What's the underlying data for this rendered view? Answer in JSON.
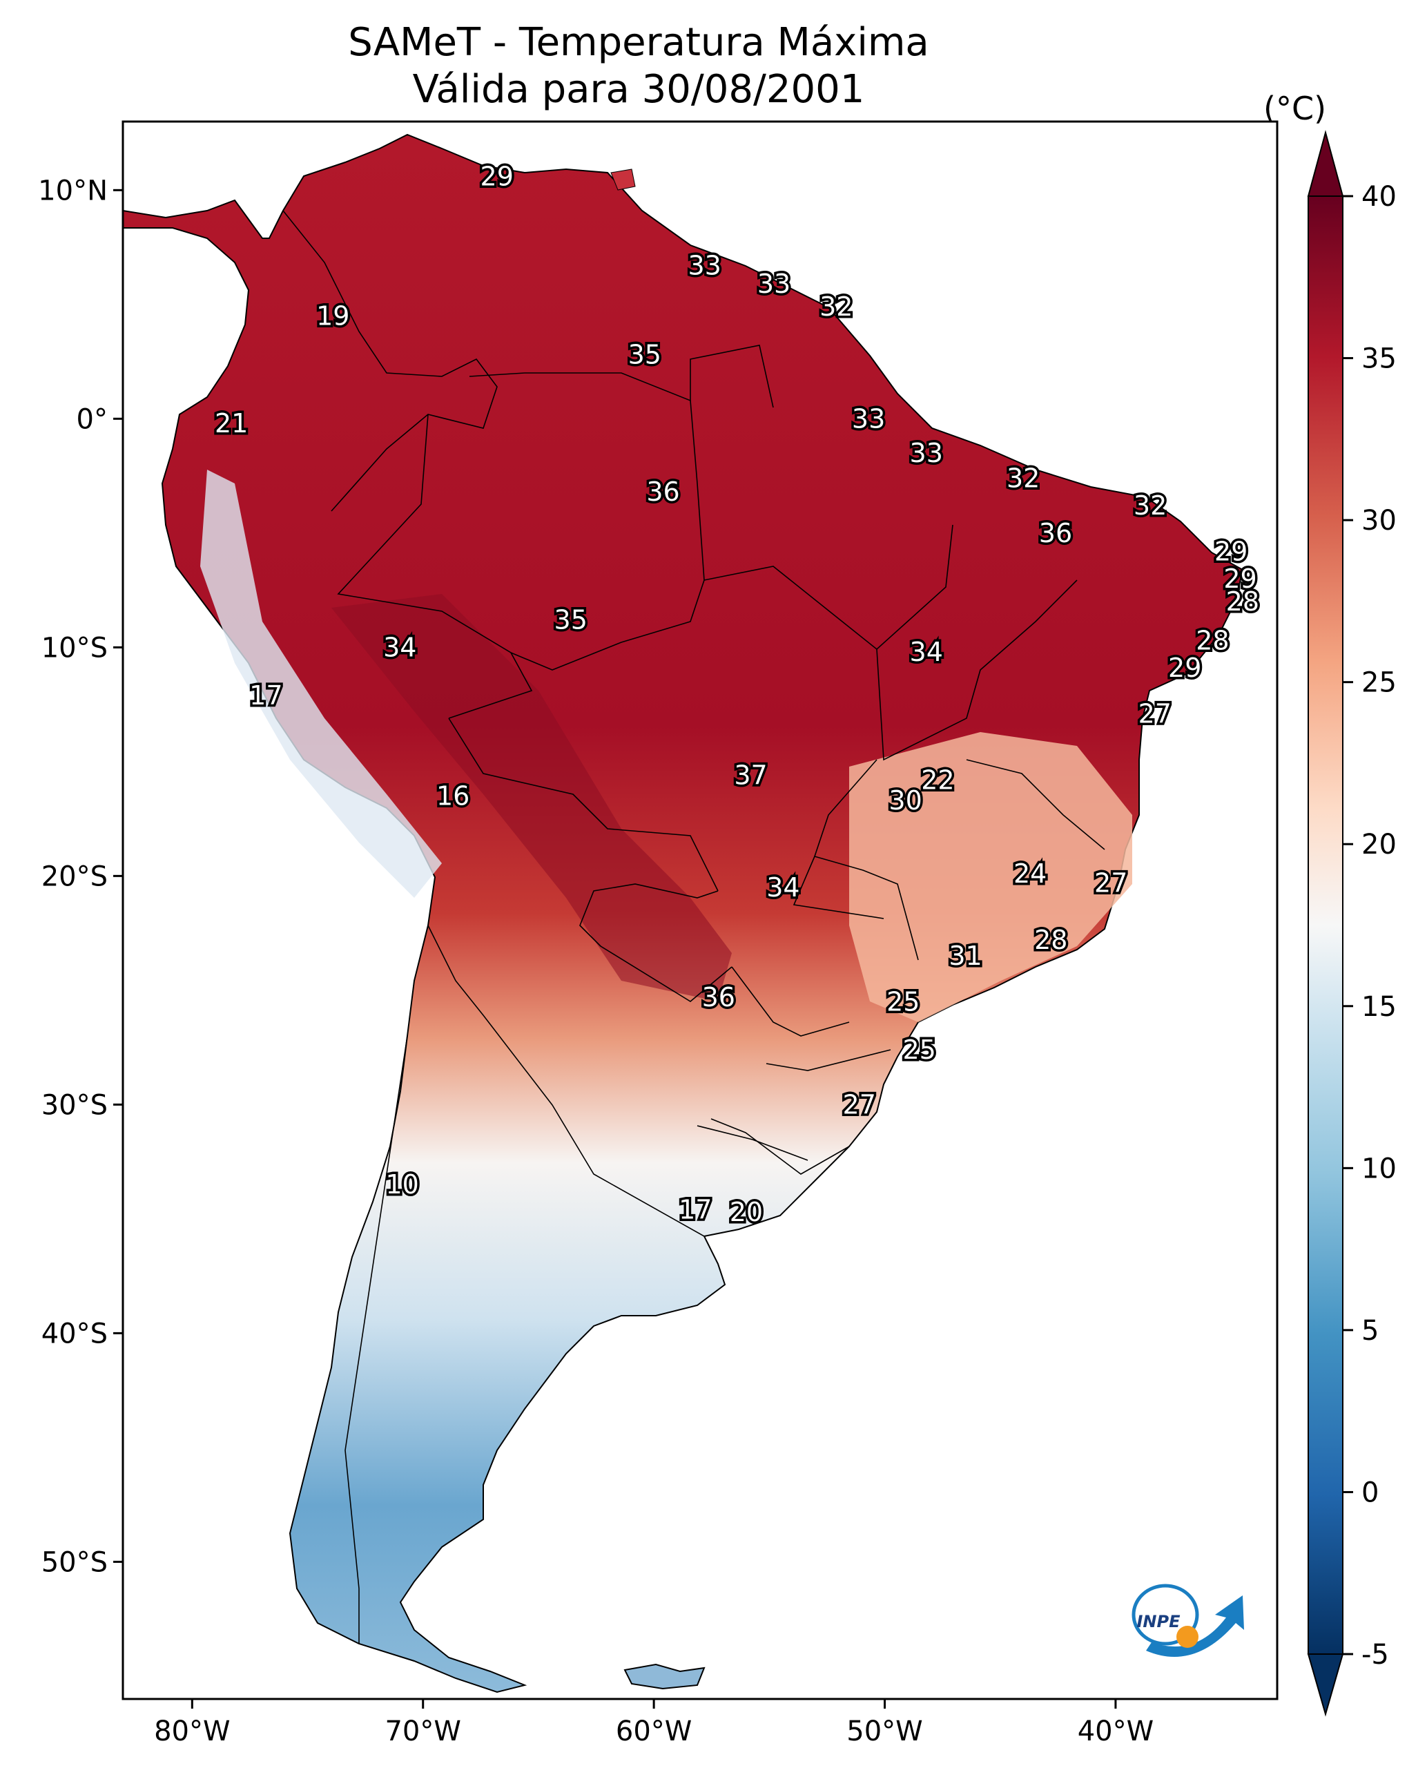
{
  "title": {
    "line1": "SAMeT - Temperatura Máxima",
    "line2": "Válida para 30/08/2001"
  },
  "map": {
    "lon_range": [
      -83,
      -33
    ],
    "lat_range": [
      -56,
      13
    ],
    "lon_ticks": [
      "80°W",
      "70°W",
      "60°W",
      "50°W",
      "40°W"
    ],
    "lat_ticks": [
      "10°N",
      "0°",
      "10°S",
      "20°S",
      "30°S",
      "40°S",
      "50°S"
    ],
    "logo_text": "INPE"
  },
  "colorbar": {
    "unit": "(°C)",
    "min": -5,
    "max": 40,
    "ticks": [
      "40",
      "35",
      "30",
      "25",
      "20",
      "15",
      "10",
      "5",
      "0",
      "-5"
    ],
    "colors": [
      "#053061",
      "#2166ac",
      "#4393c3",
      "#92c5de",
      "#d1e5f0",
      "#f7f7f7",
      "#fddbc7",
      "#f4a582",
      "#d6604d",
      "#b2182b",
      "#67001f"
    ]
  },
  "station_labels": [
    {
      "text": "29",
      "lon": -66.8,
      "lat": 10.6
    },
    {
      "text": "33",
      "lon": -57.8,
      "lat": 6.7
    },
    {
      "text": "33",
      "lon": -54.8,
      "lat": 5.9
    },
    {
      "text": "32",
      "lon": -52.1,
      "lat": 4.9
    },
    {
      "text": "19",
      "lon": -73.9,
      "lat": 4.5
    },
    {
      "text": "35",
      "lon": -60.4,
      "lat": 2.8
    },
    {
      "text": "21",
      "lon": -78.3,
      "lat": -0.2
    },
    {
      "text": "33",
      "lon": -50.7,
      "lat": 0.0
    },
    {
      "text": "33",
      "lon": -48.2,
      "lat": -1.5
    },
    {
      "text": "32",
      "lon": -44.0,
      "lat": -2.6
    },
    {
      "text": "36",
      "lon": -59.6,
      "lat": -3.2
    },
    {
      "text": "32",
      "lon": -38.5,
      "lat": -3.8
    },
    {
      "text": "36",
      "lon": -42.6,
      "lat": -5.0
    },
    {
      "text": "29",
      "lon": -35.0,
      "lat": -5.8
    },
    {
      "text": "29",
      "lon": -34.6,
      "lat": -7.0
    },
    {
      "text": "28",
      "lon": -34.5,
      "lat": -8.0
    },
    {
      "text": "35",
      "lon": -63.6,
      "lat": -8.8
    },
    {
      "text": "34",
      "lon": -71.0,
      "lat": -10.0
    },
    {
      "text": "34",
      "lon": -48.2,
      "lat": -10.2
    },
    {
      "text": "28",
      "lon": -35.8,
      "lat": -9.7
    },
    {
      "text": "29",
      "lon": -37.0,
      "lat": -10.9
    },
    {
      "text": "17",
      "lon": -76.8,
      "lat": -12.1
    },
    {
      "text": "27",
      "lon": -38.3,
      "lat": -12.9
    },
    {
      "text": "22",
      "lon": -47.7,
      "lat": -15.8
    },
    {
      "text": "37",
      "lon": -55.8,
      "lat": -15.6
    },
    {
      "text": "30",
      "lon": -49.1,
      "lat": -16.7
    },
    {
      "text": "16",
      "lon": -68.7,
      "lat": -16.5
    },
    {
      "text": "24",
      "lon": -43.7,
      "lat": -19.9
    },
    {
      "text": "27",
      "lon": -40.2,
      "lat": -20.3
    },
    {
      "text": "34",
      "lon": -54.4,
      "lat": -20.5
    },
    {
      "text": "28",
      "lon": -42.8,
      "lat": -22.8
    },
    {
      "text": "31",
      "lon": -46.5,
      "lat": -23.5
    },
    {
      "text": "36",
      "lon": -57.2,
      "lat": -25.3
    },
    {
      "text": "25",
      "lon": -49.2,
      "lat": -25.5
    },
    {
      "text": "25",
      "lon": -48.5,
      "lat": -27.6
    },
    {
      "text": "27",
      "lon": -51.1,
      "lat": -30.0
    },
    {
      "text": "10",
      "lon": -70.9,
      "lat": -33.5
    },
    {
      "text": "17",
      "lon": -58.2,
      "lat": -34.6
    },
    {
      "text": "20",
      "lon": -56.0,
      "lat": -34.7
    }
  ]
}
